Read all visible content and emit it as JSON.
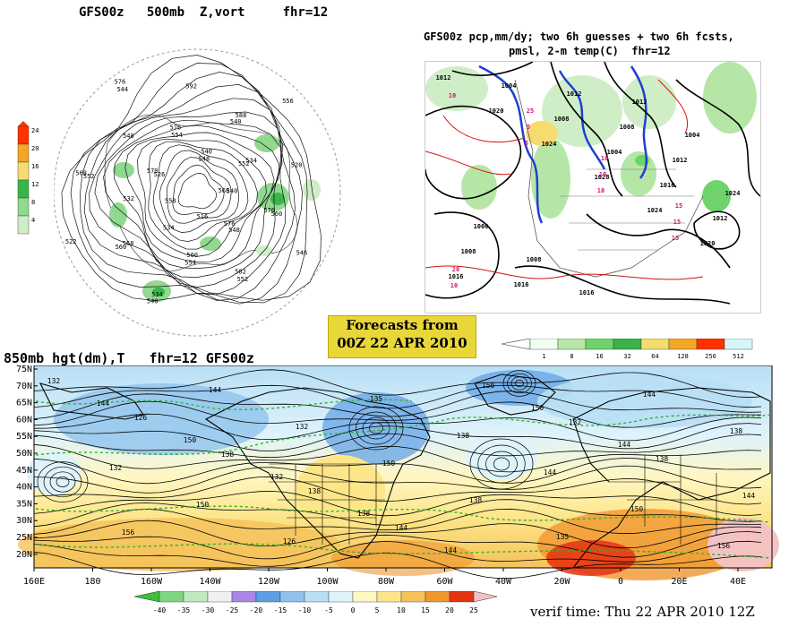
{
  "panel_500mb": {
    "title": "GFS00z   500mb  Z,vort     fhr=12",
    "legend_ticks": [
      "24",
      "20",
      "16",
      "12",
      "8",
      "4"
    ],
    "legend_colors": [
      "#ff3300",
      "#f5a623",
      "#f5dc6e",
      "#3ab54a",
      "#90d98f",
      "#cfeec7"
    ],
    "contour_labels": [
      "568",
      "576",
      "560",
      "568",
      "552",
      "544",
      "548",
      "552",
      "576",
      "582",
      "534",
      "522",
      "526",
      "554",
      "540",
      "520",
      "546",
      "516",
      "534",
      "532",
      "548",
      "592",
      "556",
      "540",
      "548",
      "554",
      "560",
      "568",
      "576",
      "540",
      "534",
      "560",
      "552",
      "540",
      "558",
      "570",
      "576",
      "588"
    ]
  },
  "panel_pcp": {
    "title_line1": "GFS00z pcp,mm/dy; two 6h guesses + two 6h fcsts,",
    "title_line2": "pmsl, 2-m temp(C)  fhr=12",
    "isobar_labels": [
      "1012",
      "1020",
      "1024",
      "1028",
      "1024",
      "1020",
      "1016",
      "1004",
      "1008",
      "1004",
      "1016",
      "1012",
      "1008",
      "1016",
      "1012",
      "1008",
      "1012",
      "1024",
      "1000",
      "1008",
      "1016",
      "1012",
      "1004"
    ],
    "temp_labels": [
      "10",
      "5",
      "10",
      "15",
      "10",
      "5",
      "10",
      "15",
      "20",
      "25",
      "10",
      "15"
    ],
    "legend_ticks": [
      "1",
      "8",
      "16",
      "32",
      "64",
      "128",
      "256",
      "512"
    ],
    "legend_colors": [
      "#f0fff0",
      "#b5e6a5",
      "#6dd36a",
      "#3cb34a",
      "#f5dc6e",
      "#f5a623",
      "#ff3300",
      "#d7f5fb"
    ]
  },
  "forecast_badge": {
    "line1": "Forecasts from",
    "line2": "00Z 22 APR 2010"
  },
  "panel_850mb": {
    "title": "850mb hgt(dm),T   fhr=12 GFS00z",
    "lat_labels": [
      "75N",
      "70N",
      "65N",
      "60N",
      "55N",
      "50N",
      "45N",
      "40N",
      "35N",
      "30N",
      "25N",
      "20N"
    ],
    "lon_labels": [
      "160E",
      "180",
      "160W",
      "140W",
      "120W",
      "100W",
      "80W",
      "60W",
      "40W",
      "20W",
      "0",
      "20E",
      "40E"
    ],
    "height_labels": [
      "132",
      "126",
      "138",
      "138",
      "144",
      "150",
      "132",
      "138",
      "144",
      "156",
      "144",
      "132",
      "150",
      "138",
      "135",
      "144",
      "138",
      "132",
      "150",
      "126",
      "135",
      "138",
      "144",
      "150",
      "156",
      "144",
      "150",
      "132",
      "138",
      "144",
      "150",
      "144"
    ],
    "legend_ticks": [
      "-40",
      "-35",
      "-30",
      "-25",
      "-20",
      "-15",
      "-10",
      "-5",
      "0",
      "5",
      "10",
      "15",
      "20",
      "25"
    ],
    "legend_colors": [
      "#3cbf3c",
      "#7ed67e",
      "#bfeabf",
      "#f0f0f0",
      "#a985e6",
      "#5b9ee6",
      "#8fc3ec",
      "#b8dff5",
      "#dff3fb",
      "#fff7c2",
      "#fde68a",
      "#f5c25a",
      "#f0962f",
      "#e63312",
      "#f5c2c2"
    ]
  },
  "verif_time": "verif time: Thu 22 APR 2010 12Z"
}
